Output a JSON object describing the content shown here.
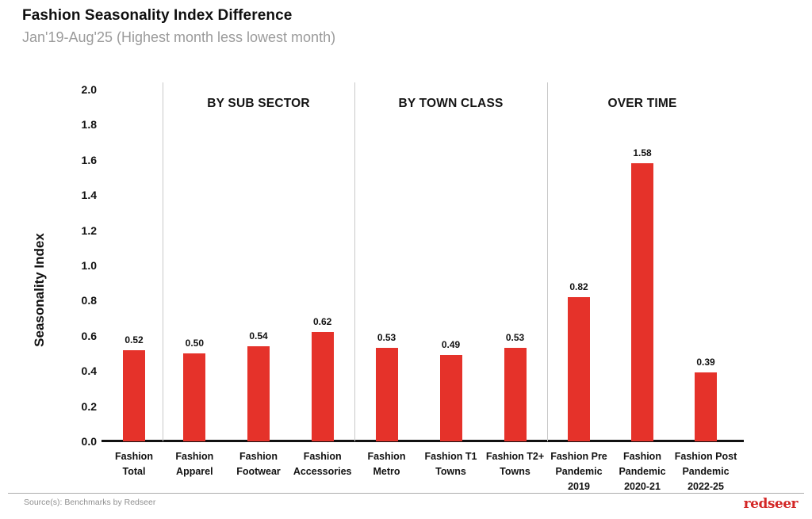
{
  "header": {
    "title": "Fashion Seasonality Index Difference",
    "subtitle": "Jan'19-Aug'25 (Highest month less lowest month)"
  },
  "chart_data": {
    "type": "bar",
    "title": "Fashion Seasonality Index Difference",
    "subtitle": "Jan'19-Aug'25 (Highest month less lowest month)",
    "xlabel": "",
    "ylabel": "Seasonality Index",
    "ylim": [
      0.0,
      2.0
    ],
    "ytick_labels": [
      "0.0",
      "0.2",
      "0.4",
      "0.6",
      "0.8",
      "1.0",
      "1.2",
      "1.4",
      "1.6",
      "1.8",
      "2.0"
    ],
    "grid": false,
    "legend": false,
    "bar_color": "#e5322a",
    "groups": [
      {
        "label": "",
        "items": [
          {
            "category": "Fashion Total",
            "label_lines": "Fashion\nTotal",
            "value": 0.52,
            "value_label": "0.52"
          }
        ]
      },
      {
        "label": "BY SUB SECTOR",
        "items": [
          {
            "category": "Fashion Apparel",
            "label_lines": "Fashion\nApparel",
            "value": 0.5,
            "value_label": "0.50"
          },
          {
            "category": "Fashion Footwear",
            "label_lines": "Fashion\nFootwear",
            "value": 0.54,
            "value_label": "0.54"
          },
          {
            "category": "Fashion Accessories",
            "label_lines": "Fashion\nAccessories",
            "value": 0.62,
            "value_label": "0.62"
          }
        ]
      },
      {
        "label": "BY TOWN CLASS",
        "items": [
          {
            "category": "Fashion Metro",
            "label_lines": "Fashion\nMetro",
            "value": 0.53,
            "value_label": "0.53"
          },
          {
            "category": "Fashion T1 Towns",
            "label_lines": "Fashion T1\nTowns",
            "value": 0.49,
            "value_label": "0.49"
          },
          {
            "category": "Fashion T2+ Towns",
            "label_lines": "Fashion T2+\nTowns",
            "value": 0.53,
            "value_label": "0.53"
          }
        ]
      },
      {
        "label": "OVER TIME",
        "items": [
          {
            "category": "Fashion Pre Pandemic 2019",
            "label_lines": "Fashion Pre\nPandemic\n2019",
            "value": 0.82,
            "value_label": "0.82"
          },
          {
            "category": "Fashion Pandemic 2020-21",
            "label_lines": "Fashion\nPandemic\n2020-21",
            "value": 1.58,
            "value_label": "1.58"
          },
          {
            "category": "Fashion Post Pandemic 2022-25",
            "label_lines": "Fashion Post\nPandemic\n2022-25",
            "value": 0.39,
            "value_label": "0.39"
          }
        ]
      }
    ]
  },
  "footer": {
    "source": "Source(s): Benchmarks by Redseer",
    "logo": "redseer",
    "logo_color": "#d32726"
  }
}
